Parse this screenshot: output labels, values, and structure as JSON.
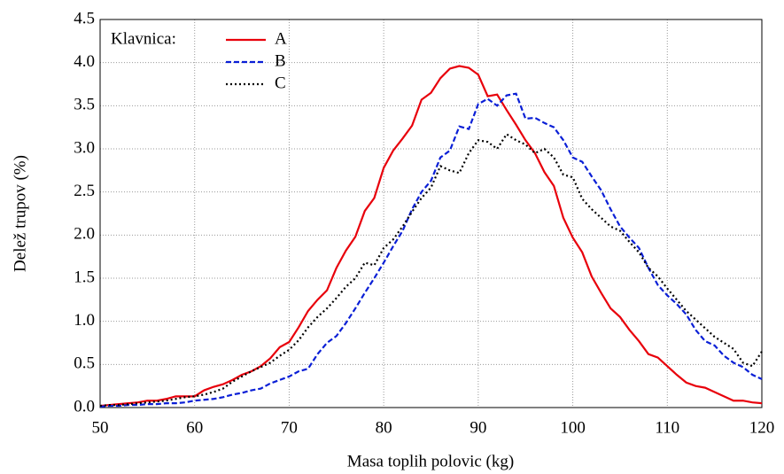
{
  "chart_data": {
    "type": "line",
    "x_label": "Masa toplih polovic (kg)",
    "y_label": "Delež trupov (%)",
    "legend_title": "Klavnica:",
    "legend_position": "upper left",
    "grid": true,
    "xlim": [
      50,
      120
    ],
    "ylim": [
      0,
      4.5
    ],
    "xticks": [
      50,
      60,
      70,
      80,
      90,
      100,
      110,
      120
    ],
    "yticks": [
      {
        "value": 0,
        "label": "0.0"
      },
      0.5,
      {
        "value": 1,
        "label": "1.0"
      },
      1.5,
      {
        "value": 2,
        "label": "2.0"
      },
      2.5,
      {
        "value": 3,
        "label": "3.0"
      },
      3.5,
      {
        "value": 4,
        "label": "4.0"
      },
      4.5
    ],
    "x": [
      50,
      51,
      52,
      53,
      54,
      55,
      56,
      57,
      58,
      59,
      60,
      61,
      62,
      63,
      64,
      65,
      66,
      67,
      68,
      69,
      70,
      71,
      72,
      73,
      74,
      75,
      76,
      77,
      78,
      79,
      80,
      81,
      82,
      83,
      84,
      85,
      86,
      87,
      88,
      89,
      90,
      91,
      92,
      93,
      94,
      95,
      96,
      97,
      98,
      99,
      100,
      101,
      102,
      103,
      104,
      105,
      106,
      107,
      108,
      109,
      110,
      111,
      112,
      113,
      114,
      115,
      116,
      117,
      118,
      119,
      120
    ],
    "series": [
      {
        "name": "A",
        "color": "#e8000b",
        "style": "solid",
        "values": [
          0.02,
          0.03,
          0.04,
          0.05,
          0.06,
          0.08,
          0.08,
          0.1,
          0.13,
          0.13,
          0.13,
          0.2,
          0.24,
          0.27,
          0.32,
          0.38,
          0.42,
          0.48,
          0.57,
          0.7,
          0.76,
          0.93,
          1.12,
          1.25,
          1.36,
          1.62,
          1.82,
          1.98,
          2.28,
          2.43,
          2.78,
          2.98,
          3.12,
          3.27,
          3.57,
          3.65,
          3.82,
          3.93,
          3.96,
          3.94,
          3.86,
          3.61,
          3.63,
          3.45,
          3.28,
          3.1,
          2.95,
          2.73,
          2.57,
          2.2,
          1.97,
          1.8,
          1.52,
          1.33,
          1.15,
          1.05,
          0.9,
          0.77,
          0.62,
          0.58,
          0.48,
          0.38,
          0.29,
          0.25,
          0.23,
          0.18,
          0.13,
          0.08,
          0.08,
          0.06,
          0.05
        ]
      },
      {
        "name": "B",
        "color": "#0a1fd6",
        "style": "dashed",
        "values": [
          0.01,
          0.02,
          0.02,
          0.03,
          0.03,
          0.04,
          0.04,
          0.05,
          0.05,
          0.06,
          0.08,
          0.09,
          0.1,
          0.12,
          0.15,
          0.17,
          0.2,
          0.22,
          0.28,
          0.32,
          0.36,
          0.42,
          0.45,
          0.62,
          0.75,
          0.83,
          0.98,
          1.15,
          1.33,
          1.5,
          1.68,
          1.87,
          2.05,
          2.3,
          2.5,
          2.63,
          2.9,
          2.98,
          3.26,
          3.23,
          3.52,
          3.58,
          3.5,
          3.62,
          3.64,
          3.35,
          3.36,
          3.3,
          3.25,
          3.1,
          2.9,
          2.85,
          2.68,
          2.52,
          2.3,
          2.1,
          1.97,
          1.85,
          1.62,
          1.42,
          1.3,
          1.2,
          1.08,
          0.9,
          0.77,
          0.72,
          0.6,
          0.52,
          0.47,
          0.38,
          0.33
        ]
      },
      {
        "name": "C",
        "color": "#000000",
        "style": "dotted",
        "values": [
          0.02,
          0.03,
          0.03,
          0.04,
          0.05,
          0.06,
          0.07,
          0.08,
          0.1,
          0.12,
          0.13,
          0.15,
          0.18,
          0.22,
          0.3,
          0.36,
          0.42,
          0.47,
          0.52,
          0.6,
          0.67,
          0.78,
          0.93,
          1.05,
          1.15,
          1.27,
          1.4,
          1.5,
          1.68,
          1.65,
          1.85,
          1.95,
          2.1,
          2.27,
          2.43,
          2.55,
          2.8,
          2.75,
          2.72,
          2.95,
          3.1,
          3.08,
          3.0,
          3.17,
          3.1,
          3.05,
          2.95,
          3.0,
          2.9,
          2.7,
          2.67,
          2.42,
          2.3,
          2.2,
          2.1,
          2.05,
          1.92,
          1.8,
          1.62,
          1.52,
          1.38,
          1.25,
          1.12,
          1.02,
          0.92,
          0.82,
          0.75,
          0.68,
          0.52,
          0.48,
          0.65
        ]
      }
    ]
  }
}
